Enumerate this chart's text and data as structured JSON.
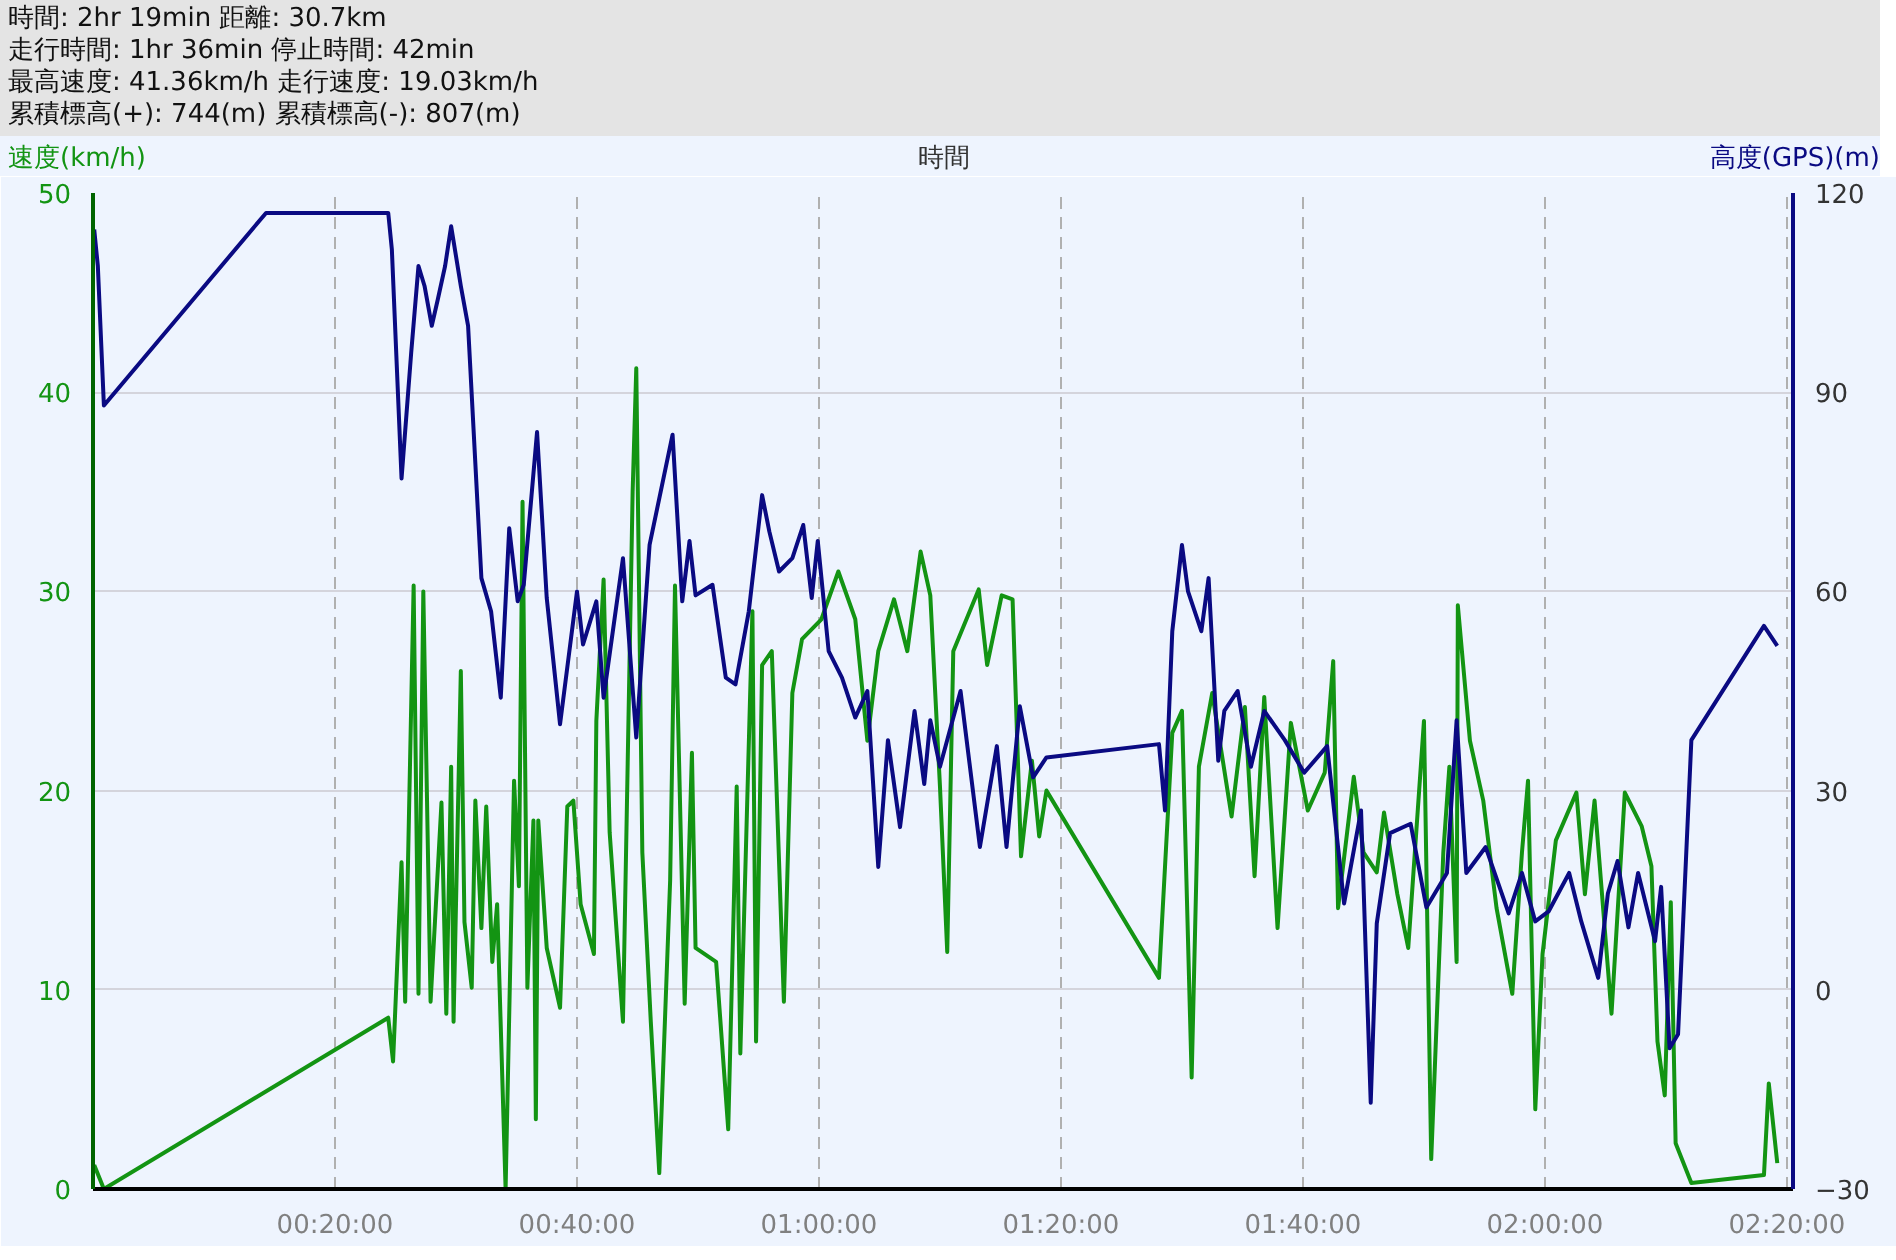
{
  "chart_data": {
    "type": "line",
    "title": "時間: 2hr 19min 距離: 30.7km",
    "annotations": [
      "走行時間: 1hr 36min 停止時間: 42min",
      "最高速度: 41.36km/h 走行速度: 19.03km/h",
      "累積標高(+): 744(m) 累積標高(-): 807(m)"
    ],
    "xlabel": "時間",
    "ylabel": "速度(km/h)",
    "y2label": "高度(GPS)(m)",
    "xlim": [
      0,
      140.5
    ],
    "xticks": [
      {
        "value": 20,
        "label": "00:20:00"
      },
      {
        "value": 40,
        "label": "00:40:00"
      },
      {
        "value": 60,
        "label": "01:00:00"
      },
      {
        "value": 80,
        "label": "01:20:00"
      },
      {
        "value": 100,
        "label": "01:40:00"
      },
      {
        "value": 120,
        "label": "02:00:00"
      },
      {
        "value": 140,
        "label": "02:20:00"
      }
    ],
    "ylim": [
      0,
      50
    ],
    "yticks": [
      0,
      10,
      20,
      30,
      40,
      50
    ],
    "y2lim": [
      -30,
      120
    ],
    "y2ticks": [
      -30,
      0,
      30,
      60,
      90,
      120
    ],
    "grid": true,
    "line_style": "solid",
    "marker": "none",
    "series": [
      {
        "color": "#139413",
        "x": [
          0.1,
          0.9,
          24.4,
          24.8,
          25.5,
          25.8,
          26.5,
          26.9,
          27.3,
          27.9,
          28.8,
          29.2,
          29.6,
          29.8,
          30.4,
          30.7,
          31.3,
          31.6,
          32.1,
          32.5,
          33.0,
          33.4,
          34.1,
          34.8,
          35.2,
          35.5,
          35.9,
          36.4,
          36.6,
          36.8,
          37.5,
          38.6,
          39.2,
          39.7,
          40.3,
          41.4,
          41.6,
          42.2,
          42.7,
          43.8,
          44.6,
          44.9,
          45.4,
          46.1,
          46.8,
          47.7,
          48.1,
          48.9,
          49.5,
          49.8,
          51.5,
          52.5,
          53.2,
          53.5,
          54.5,
          54.8,
          55.3,
          56.1,
          57.1,
          57.8,
          58.6,
          60.2,
          61.6,
          63.0,
          64.0,
          64.9,
          66.2,
          67.3,
          68.4,
          69.2,
          70.0,
          70.6,
          71.1,
          73.2,
          73.9,
          75.1,
          76.0,
          76.7,
          77.6,
          78.2,
          78.8,
          88.1,
          88.6,
          89.2,
          90.0,
          90.8,
          91.4,
          92.5,
          94.1,
          95.2,
          96.0,
          96.8,
          97.9,
          99.0,
          100.4,
          101.8,
          102.5,
          102.9,
          104.2,
          105.0,
          106.1,
          106.7,
          107.8,
          108.7,
          110.0,
          110.6,
          111.6,
          112.1,
          112.7,
          112.8,
          113.8,
          114.9,
          116.0,
          117.3,
          118.1,
          118.6,
          119.2,
          119.8,
          120.9,
          122.6,
          123.3,
          124.1,
          125.5,
          126.6,
          128.0,
          128.8,
          129.3,
          129.9,
          130.4,
          130.8,
          132.1,
          138.1,
          138.5,
          139.2
        ],
        "values": [
          1.2,
          0,
          8.6,
          6.4,
          16.4,
          9.4,
          30.3,
          9.8,
          30,
          9.4,
          19.4,
          8.8,
          21.2,
          8.4,
          26,
          13.4,
          10.1,
          19.5,
          13.1,
          19.2,
          11.4,
          14.3,
          0,
          20.5,
          15.2,
          34.5,
          10.1,
          18.5,
          3.5,
          18.5,
          12.1,
          9.1,
          19.2,
          19.5,
          14.3,
          11.8,
          23.5,
          30.6,
          17.9,
          8.4,
          35,
          41.2,
          16.9,
          8.4,
          0.8,
          15.5,
          30.3,
          9.3,
          21.9,
          12.1,
          11.4,
          3,
          20.2,
          6.8,
          29,
          7.4,
          26.3,
          27,
          9.4,
          24.9,
          27.6,
          28.6,
          31,
          28.6,
          22.5,
          27,
          29.6,
          27,
          32,
          29.8,
          20.2,
          11.9,
          27,
          30.1,
          26.3,
          29.8,
          29.6,
          16.7,
          21.5,
          17.7,
          20,
          10.6,
          16.2,
          22.9,
          24,
          5.6,
          21.2,
          24.9,
          18.7,
          24.2,
          15.7,
          24.7,
          13.1,
          23.4,
          19,
          20.9,
          26.5,
          14.1,
          20.7,
          16.9,
          15.9,
          18.9,
          14.8,
          12.1,
          23.5,
          1.5,
          16.9,
          21.2,
          11.4,
          29.3,
          22.5,
          19.5,
          14.1,
          9.8,
          16.9,
          20.5,
          4,
          11.8,
          17.5,
          19.9,
          14.8,
          19.5,
          8.8,
          19.9,
          18.2,
          16.2,
          7.4,
          4.7,
          14.4,
          2.3,
          0.3,
          0.7,
          5.3,
          1.3
        ]
      },
      {
        "color": "#0a0a82",
        "axis": "y2",
        "x": [
          0.1,
          0.4,
          0.9,
          14.3,
          24.4,
          24.7,
          25.5,
          26.3,
          26.9,
          27.4,
          28.0,
          28.5,
          29.1,
          29.6,
          30.4,
          31.0,
          32.1,
          32.9,
          33.7,
          34.4,
          35.1,
          35.6,
          36.7,
          37.5,
          38.6,
          40.0,
          40.5,
          41.6,
          42.2,
          43.8,
          44.9,
          46.0,
          47.9,
          48.7,
          49.3,
          49.8,
          51.2,
          52.3,
          53.1,
          54.2,
          55.3,
          55.9,
          56.7,
          57.8,
          58.7,
          59.4,
          59.9,
          60.8,
          61.9,
          63.0,
          64.0,
          64.9,
          65.7,
          66.7,
          67.9,
          68.7,
          69.2,
          70.0,
          71.7,
          73.3,
          74.7,
          75.5,
          76.6,
          77.7,
          78.8,
          88.1,
          88.6,
          89.2,
          90.0,
          90.5,
          91.6,
          92.2,
          93.0,
          93.5,
          94.6,
          95.7,
          96.8,
          98.5,
          100.1,
          102.0,
          103.4,
          104.8,
          105.6,
          106.1,
          107.2,
          108.9,
          110.2,
          111.9,
          112.7,
          113.5,
          115.1,
          117.0,
          118.1,
          119.2,
          120.3,
          122.0,
          123.0,
          124.4,
          125.2,
          126.0,
          126.9,
          127.7,
          129.1,
          129.6,
          130.3,
          131.0,
          132.1,
          138.1,
          139.2
        ],
        "values": [
          114.5,
          109,
          88,
          117,
          117,
          111.5,
          77,
          96,
          109,
          106,
          100,
          104,
          109,
          115,
          106,
          100,
          62,
          57,
          44,
          69.5,
          58.5,
          61,
          84,
          59,
          40,
          60,
          52,
          58.5,
          44,
          65,
          38,
          67,
          83.6,
          58.5,
          67.6,
          59.4,
          61,
          47,
          46,
          57,
          74.5,
          69,
          63,
          65,
          70,
          59,
          67.6,
          51,
          47,
          41,
          45,
          18.5,
          37.6,
          24.5,
          42,
          31,
          40.6,
          33.6,
          45,
          21.5,
          36.7,
          21.5,
          42.7,
          32,
          35,
          37,
          27,
          54,
          67,
          60,
          54,
          62,
          34.5,
          42,
          45,
          33.6,
          42,
          37.6,
          32.7,
          36.7,
          13,
          27,
          -17,
          10,
          23.6,
          25,
          12.4,
          17.6,
          40.6,
          17.6,
          21.5,
          11.5,
          17.6,
          10.3,
          11.8,
          17.6,
          10.3,
          1.8,
          14.5,
          19.4,
          9.4,
          17.6,
          7.3,
          15.5,
          -8.8,
          -6.7,
          37.6,
          54.8,
          51.8
        ]
      }
    ]
  }
}
